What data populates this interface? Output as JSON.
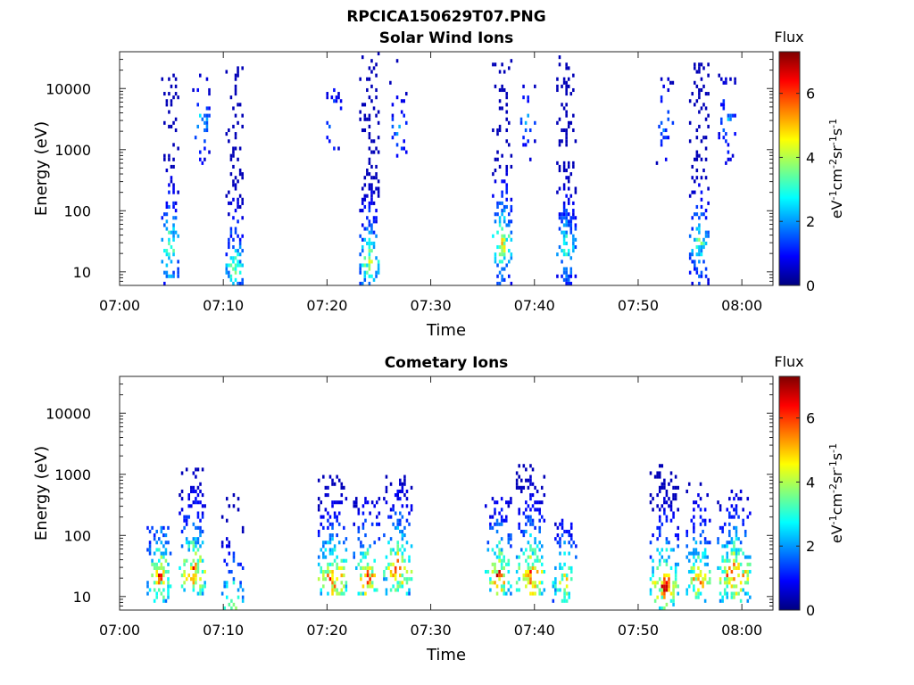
{
  "figure_title": "RPCICA150629T07.PNG",
  "colormap": [
    "#00007f",
    "#0000ff",
    "#007fff",
    "#00ffff",
    "#7fff7f",
    "#ffff00",
    "#ff7f00",
    "#ff0000",
    "#7f0000"
  ],
  "chart_data": [
    {
      "type": "heatmap",
      "title": "Solar Wind Ions",
      "xlabel": "Time",
      "ylabel": "Energy (eV)",
      "x_ticks": [
        "07:00",
        "07:10",
        "07:20",
        "07:30",
        "07:40",
        "07:50",
        "08:00"
      ],
      "x_range_minutes": [
        0,
        63
      ],
      "y_scale": "log",
      "y_range": [
        6,
        40000
      ],
      "y_ticks": [
        10,
        100,
        1000,
        10000
      ],
      "colorbar": {
        "title": "Flux",
        "label": "eV-1cm-2sr-1s-1",
        "range": [
          0,
          7.3
        ],
        "ticks": [
          0,
          2,
          4,
          6
        ]
      },
      "events": [
        {
          "t": 4.8,
          "spread": 0.8,
          "e_min": 6,
          "e_max": 20000,
          "peak": 5,
          "peak_e": 25,
          "density": 0.55
        },
        {
          "t": 7.8,
          "spread": 0.8,
          "e_min": 600,
          "e_max": 18000,
          "peak": 3,
          "peak_e": 3000,
          "density": 0.25
        },
        {
          "t": 11.0,
          "spread": 0.8,
          "e_min": 6,
          "e_max": 28000,
          "peak": 4.5,
          "peak_e": 12,
          "density": 0.6
        },
        {
          "t": 20.5,
          "spread": 0.8,
          "e_min": 1000,
          "e_max": 15000,
          "peak": 2.5,
          "peak_e": 3000,
          "density": 0.25
        },
        {
          "t": 24.0,
          "spread": 0.9,
          "e_min": 6,
          "e_max": 38000,
          "peak": 5,
          "peak_e": 15,
          "density": 0.6
        },
        {
          "t": 26.8,
          "spread": 0.8,
          "e_min": 500,
          "e_max": 30000,
          "peak": 2.5,
          "peak_e": 2000,
          "density": 0.25
        },
        {
          "t": 36.8,
          "spread": 0.9,
          "e_min": 6,
          "e_max": 32000,
          "peak": 5.5,
          "peak_e": 30,
          "density": 0.6
        },
        {
          "t": 39.2,
          "spread": 0.8,
          "e_min": 600,
          "e_max": 15000,
          "peak": 2.5,
          "peak_e": 3000,
          "density": 0.2
        },
        {
          "t": 43.0,
          "spread": 0.9,
          "e_min": 6,
          "e_max": 35000,
          "peak": 4,
          "peak_e": 25,
          "density": 0.6
        },
        {
          "t": 52.5,
          "spread": 0.8,
          "e_min": 500,
          "e_max": 15000,
          "peak": 2.5,
          "peak_e": 3000,
          "density": 0.2
        },
        {
          "t": 55.8,
          "spread": 0.9,
          "e_min": 6,
          "e_max": 26000,
          "peak": 4,
          "peak_e": 30,
          "density": 0.55
        },
        {
          "t": 58.5,
          "spread": 0.8,
          "e_min": 600,
          "e_max": 22000,
          "peak": 2.5,
          "peak_e": 3000,
          "density": 0.25
        }
      ]
    },
    {
      "type": "heatmap",
      "title": "Cometary Ions",
      "xlabel": "Time",
      "ylabel": "Energy (eV)",
      "x_ticks": [
        "07:00",
        "07:10",
        "07:20",
        "07:30",
        "07:40",
        "07:50",
        "08:00"
      ],
      "x_range_minutes": [
        0,
        63
      ],
      "y_scale": "log",
      "y_range": [
        6,
        40000
      ],
      "y_ticks": [
        10,
        100,
        1000,
        10000
      ],
      "colorbar": {
        "title": "Flux",
        "label": "eV-1cm-2sr-1s-1",
        "range": [
          0,
          7.3
        ],
        "ticks": [
          0,
          2,
          4,
          6
        ]
      },
      "events": [
        {
          "t": 3.8,
          "spread": 1.2,
          "e_min": 8,
          "e_max": 150,
          "peak": 6.5,
          "peak_e": 22,
          "density": 0.55
        },
        {
          "t": 7.0,
          "spread": 1.3,
          "e_min": 10,
          "e_max": 1200,
          "peak": 7,
          "peak_e": 25,
          "density": 0.55
        },
        {
          "t": 10.8,
          "spread": 1.0,
          "e_min": 6,
          "e_max": 600,
          "peak": 5,
          "peak_e": 8,
          "density": 0.4
        },
        {
          "t": 20.5,
          "spread": 1.4,
          "e_min": 10,
          "e_max": 1000,
          "peak": 7.2,
          "peak_e": 20,
          "density": 0.6
        },
        {
          "t": 23.8,
          "spread": 1.3,
          "e_min": 10,
          "e_max": 400,
          "peak": 6.8,
          "peak_e": 20,
          "density": 0.55
        },
        {
          "t": 26.8,
          "spread": 1.4,
          "e_min": 10,
          "e_max": 1000,
          "peak": 7,
          "peak_e": 28,
          "density": 0.55
        },
        {
          "t": 36.5,
          "spread": 1.3,
          "e_min": 10,
          "e_max": 500,
          "peak": 7,
          "peak_e": 22,
          "density": 0.55
        },
        {
          "t": 39.6,
          "spread": 1.4,
          "e_min": 10,
          "e_max": 1400,
          "peak": 7.3,
          "peak_e": 22,
          "density": 0.6
        },
        {
          "t": 42.8,
          "spread": 1.1,
          "e_min": 8,
          "e_max": 180,
          "peak": 5.5,
          "peak_e": 18,
          "density": 0.5
        },
        {
          "t": 52.5,
          "spread": 1.4,
          "e_min": 6,
          "e_max": 1400,
          "peak": 7.2,
          "peak_e": 15,
          "density": 0.6
        },
        {
          "t": 55.8,
          "spread": 1.2,
          "e_min": 8,
          "e_max": 700,
          "peak": 6.5,
          "peak_e": 20,
          "density": 0.55
        },
        {
          "t": 59.2,
          "spread": 1.6,
          "e_min": 8,
          "e_max": 600,
          "peak": 7.2,
          "peak_e": 22,
          "density": 0.6
        }
      ]
    }
  ]
}
